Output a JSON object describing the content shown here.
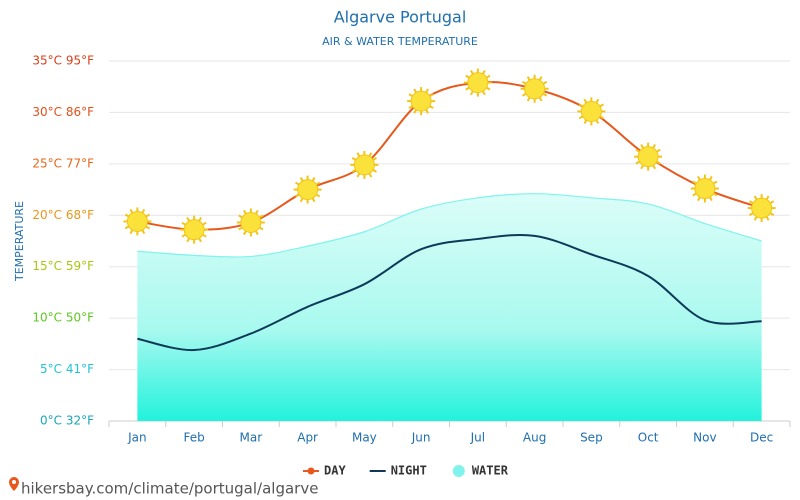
{
  "chart_data": {
    "type": "line",
    "title": "Algarve Portugal",
    "subtitle": "AIR & WATER TEMPERATURE",
    "y_label": "TEMPERATURE",
    "categories": [
      "Jan",
      "Feb",
      "Mar",
      "Apr",
      "May",
      "Jun",
      "Jul",
      "Aug",
      "Sep",
      "Oct",
      "Nov",
      "Dec"
    ],
    "series": [
      {
        "name": "DAY",
        "color": "#e8581c",
        "style": "line",
        "values": [
          19.4,
          18.6,
          19.3,
          22.5,
          24.9,
          31.1,
          32.9,
          32.3,
          30.1,
          25.7,
          22.6,
          20.7
        ]
      },
      {
        "name": "NIGHT",
        "color": "#0e3a5a",
        "style": "line",
        "values": [
          8.0,
          6.9,
          8.5,
          11.1,
          13.3,
          16.7,
          17.7,
          18.0,
          16.2,
          14.1,
          9.8,
          9.7
        ]
      },
      {
        "name": "WATER",
        "color": "#7ff3ec",
        "style": "area",
        "values": [
          16.5,
          16.1,
          16.0,
          17.0,
          18.4,
          20.6,
          21.7,
          22.1,
          21.7,
          21.1,
          19.2,
          17.5
        ]
      }
    ],
    "ylim": [
      0,
      35
    ],
    "yticks": [
      {
        "value": 0,
        "label": "0°C 32°F",
        "color": "#1aa6b8"
      },
      {
        "value": 5,
        "label": "5°C 41°F",
        "color": "#22c4d6"
      },
      {
        "value": 10,
        "label": "10°C 50°F",
        "color": "#5fc820"
      },
      {
        "value": 15,
        "label": "15°C 59°F",
        "color": "#a6c814"
      },
      {
        "value": 20,
        "label": "20°C 68°F",
        "color": "#e8961a"
      },
      {
        "value": 25,
        "label": "25°C 77°F",
        "color": "#e8661a"
      },
      {
        "value": 30,
        "label": "30°C 86°F",
        "color": "#e0501a"
      },
      {
        "value": 35,
        "label": "35°C 95°F",
        "color": "#d8401a"
      }
    ],
    "grid": true,
    "legend": "bottom",
    "footer": "hikersbay.com/climate/portugal/algarve"
  }
}
